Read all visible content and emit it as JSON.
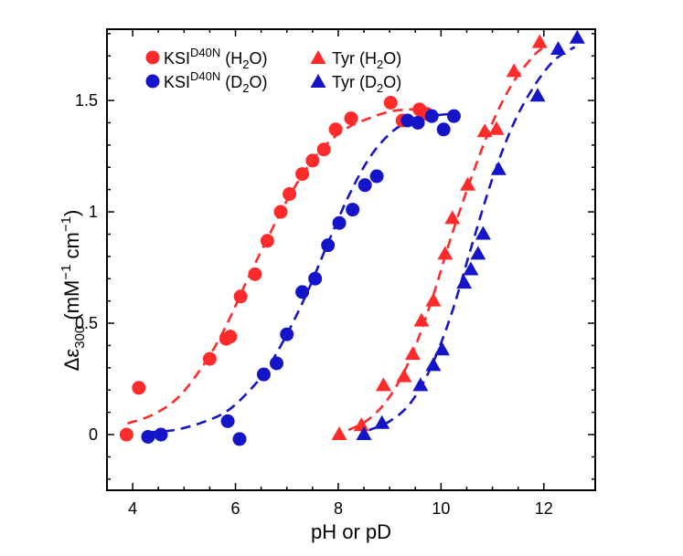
{
  "chart_data": {
    "type": "scatter",
    "xlabel": "pH or pD",
    "ylabel_parts": {
      "main": "Δε",
      "sub": "300",
      "units_open": " (mM",
      "sup1": "−1",
      "mid": " cm",
      "sup2": "−1",
      "units_close": ")"
    },
    "xlim": [
      3.5,
      13.0
    ],
    "ylim": [
      -0.25,
      1.82
    ],
    "x_ticks": [
      4,
      6,
      8,
      10,
      12
    ],
    "x_tick_labels": [
      "4",
      "6",
      "8",
      "10",
      "12"
    ],
    "y_ticks": [
      0,
      0.5,
      1,
      1.5
    ],
    "y_tick_labels": [
      "0",
      "0.5",
      "1",
      "1.5"
    ],
    "grid": false,
    "legend_position": "top-left",
    "colors": {
      "red": "#ff2a2a",
      "blue": "#1414c8"
    },
    "series": [
      {
        "id": "ksi_h2o",
        "legend": {
          "base": "KSI",
          "sup": "D40N",
          "paren_open": " (H",
          "sub": "2",
          "paren_close": "O)"
        },
        "marker": "circle",
        "color": "#ff2a2a",
        "x": [
          3.88,
          4.12,
          5.5,
          5.82,
          5.9,
          6.1,
          6.38,
          6.62,
          6.88,
          7.05,
          7.3,
          7.5,
          7.72,
          7.95,
          8.25,
          9.02,
          9.25,
          9.58,
          9.72
        ],
        "y": [
          0.0,
          0.21,
          0.34,
          0.43,
          0.44,
          0.62,
          0.72,
          0.87,
          1.0,
          1.08,
          1.17,
          1.23,
          1.28,
          1.37,
          1.42,
          1.49,
          1.41,
          1.46,
          1.44
        ],
        "fit_x": [
          3.9,
          4.4,
          4.9,
          5.4,
          5.8,
          6.2,
          6.6,
          7.0,
          7.4,
          7.8,
          8.2,
          8.6,
          9.0,
          9.4,
          9.8
        ],
        "fit_y": [
          0.05,
          0.09,
          0.17,
          0.32,
          0.48,
          0.68,
          0.87,
          1.05,
          1.2,
          1.31,
          1.38,
          1.42,
          1.45,
          1.46,
          1.46
        ]
      },
      {
        "id": "ksi_d2o",
        "legend": {
          "base": "KSI",
          "sup": "D40N",
          "paren_open": " (D",
          "sub": "2",
          "paren_close": "O)"
        },
        "marker": "circle",
        "color": "#1414c8",
        "x": [
          4.3,
          4.55,
          5.85,
          6.08,
          6.55,
          6.8,
          7.0,
          7.3,
          7.55,
          7.8,
          8.02,
          8.28,
          8.52,
          8.75,
          9.35,
          9.55,
          9.82,
          10.05,
          10.25
        ],
        "y": [
          -0.01,
          0.0,
          0.06,
          -0.02,
          0.27,
          0.32,
          0.45,
          0.64,
          0.7,
          0.85,
          0.95,
          1.01,
          1.12,
          1.16,
          1.41,
          1.4,
          1.43,
          1.37,
          1.43
        ],
        "fit_x": [
          4.3,
          4.8,
          5.3,
          5.8,
          6.2,
          6.6,
          7.0,
          7.4,
          7.8,
          8.2,
          8.6,
          9.0,
          9.4,
          9.8,
          10.2
        ],
        "fit_y": [
          0.01,
          0.02,
          0.05,
          0.1,
          0.18,
          0.29,
          0.45,
          0.64,
          0.86,
          1.07,
          1.24,
          1.35,
          1.41,
          1.43,
          1.44
        ]
      },
      {
        "id": "tyr_h2o",
        "legend": {
          "base": "Tyr",
          "sup": "",
          "paren_open": " (H",
          "sub": "2",
          "paren_close": "O)"
        },
        "marker": "triangle",
        "color": "#ff2a2a",
        "x": [
          8.02,
          8.45,
          8.88,
          9.28,
          9.45,
          9.62,
          9.85,
          10.08,
          10.22,
          10.52,
          10.85,
          11.08,
          11.42,
          11.92
        ],
        "y": [
          0.0,
          0.04,
          0.22,
          0.26,
          0.36,
          0.51,
          0.6,
          0.81,
          0.97,
          1.12,
          1.36,
          1.37,
          1.63,
          1.76
        ],
        "fit_x": [
          8.2,
          8.6,
          9.0,
          9.4,
          9.8,
          10.2,
          10.6,
          11.0,
          11.4,
          11.8,
          12.0
        ],
        "fit_y": [
          0.02,
          0.07,
          0.17,
          0.34,
          0.59,
          0.89,
          1.16,
          1.4,
          1.58,
          1.7,
          1.74
        ]
      },
      {
        "id": "tyr_d2o",
        "legend": {
          "base": "Tyr",
          "sup": "",
          "paren_open": " (D",
          "sub": "2",
          "paren_close": "O)"
        },
        "marker": "triangle",
        "color": "#1414c8",
        "x": [
          8.5,
          8.85,
          9.6,
          9.85,
          10.02,
          10.45,
          10.58,
          10.72,
          10.82,
          11.12,
          11.88,
          12.28,
          12.65
        ],
        "y": [
          0.0,
          0.05,
          0.22,
          0.31,
          0.38,
          0.68,
          0.74,
          0.81,
          0.9,
          1.19,
          1.52,
          1.73,
          1.78
        ],
        "fit_x": [
          8.6,
          9.0,
          9.4,
          9.8,
          10.2,
          10.6,
          11.0,
          11.4,
          11.8,
          12.2,
          12.6
        ],
        "fit_y": [
          0.02,
          0.06,
          0.14,
          0.3,
          0.54,
          0.85,
          1.15,
          1.39,
          1.56,
          1.68,
          1.74
        ]
      }
    ]
  }
}
